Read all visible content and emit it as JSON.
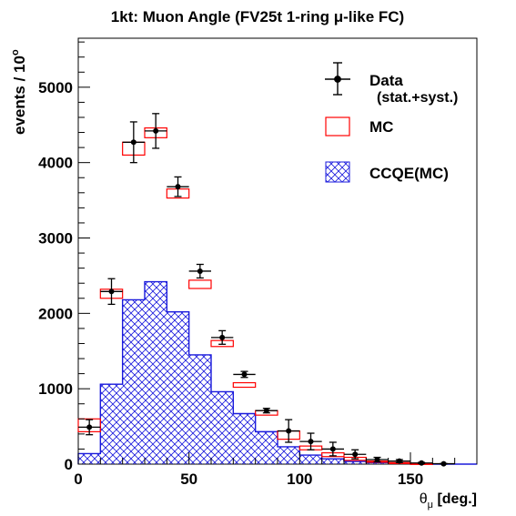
{
  "chart_data": {
    "type": "bar",
    "title": "1kt: Muon Angle (FV25t 1-ring μ-like FC)",
    "xlabel": "θ",
    "xlabel_sub": "μ",
    "xlabel_suffix": " [deg.]",
    "ylabel": "events / 10",
    "ylabel_sup": "o",
    "xlim": [
      0,
      180
    ],
    "ylim": [
      0,
      5650
    ],
    "x_ticks": [
      0,
      50,
      100,
      150
    ],
    "y_ticks": [
      0,
      1000,
      2000,
      3000,
      4000,
      5000
    ],
    "bin_width": 10,
    "bin_low_edges": [
      0,
      10,
      20,
      30,
      40,
      50,
      60,
      70,
      80,
      90,
      100,
      110,
      120,
      130,
      140,
      150,
      160,
      170
    ],
    "series": [
      {
        "name": "Data",
        "name_extra": "(stat.+syst.)",
        "values": [
          490,
          2290,
          4270,
          4420,
          3680,
          2560,
          1680,
          1190,
          710,
          440,
          300,
          200,
          130,
          60,
          40,
          15,
          5,
          0
        ],
        "errors": [
          100,
          170,
          270,
          230,
          130,
          90,
          90,
          40,
          30,
          150,
          110,
          90,
          60,
          30,
          20,
          8,
          4,
          0
        ],
        "color": "#000000"
      },
      {
        "name": "MC",
        "lows": [
          430,
          2200,
          4100,
          4330,
          3530,
          2330,
          1560,
          1020,
          650,
          330,
          190,
          100,
          50,
          25,
          12,
          5,
          0,
          0
        ],
        "highs": [
          600,
          2320,
          4270,
          4460,
          3650,
          2440,
          1640,
          1080,
          710,
          440,
          240,
          150,
          90,
          40,
          20,
          8,
          0,
          0
        ],
        "color": "#ff0000"
      },
      {
        "name": "CCQE(MC)",
        "values": [
          140,
          1060,
          2180,
          2420,
          2020,
          1450,
          960,
          670,
          430,
          230,
          120,
          70,
          35,
          20,
          10,
          5,
          0,
          0
        ],
        "color": "#1a1adc"
      }
    ],
    "legend_position": "top-right",
    "grid": false
  }
}
